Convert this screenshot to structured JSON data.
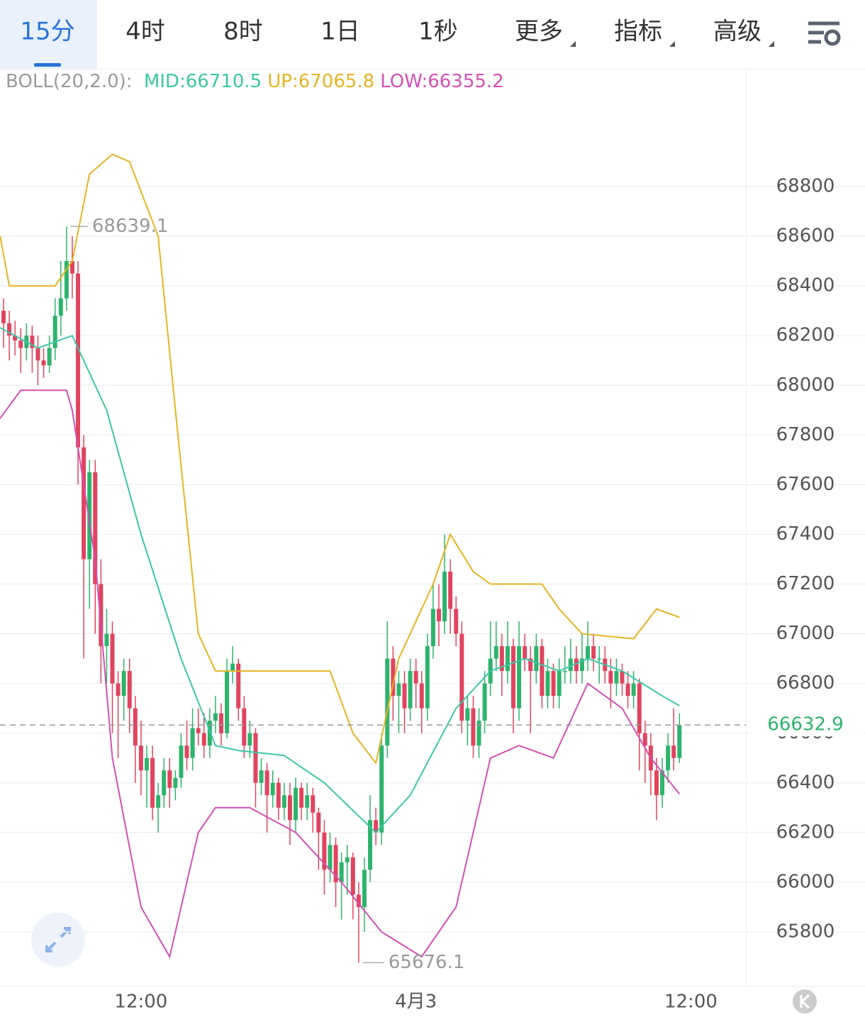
{
  "tabs": [
    "15分",
    "4时",
    "8时",
    "1日",
    "1秒",
    "更多",
    "指标",
    "高级"
  ],
  "chart_data": {
    "type": "candlestick",
    "indicator": "BOLL(20,2.0):",
    "up_color": "#2db36b",
    "down_color": "#e0445e",
    "xlim": [
      -0.619,
      129.6
    ],
    "xticks": [
      {
        "value": 24,
        "label": "12:00"
      },
      {
        "value": 72,
        "label": "4月3"
      },
      {
        "value": 120,
        "label": "12:00"
      }
    ],
    "ylim": [
      65583,
      69271
    ],
    "yticks": [
      65800,
      66000,
      66200,
      66400,
      66600,
      66800,
      67000,
      67200,
      67400,
      67600,
      67800,
      68000,
      68200,
      68400,
      68600,
      68800
    ],
    "grid": true,
    "candles": [
      [
        68300,
        68350,
        68150,
        68250
      ],
      [
        68250,
        68300,
        68100,
        68200
      ],
      [
        68200,
        68260,
        68120,
        68180
      ],
      [
        68180,
        68230,
        68050,
        68150
      ],
      [
        68150,
        68250,
        68100,
        68200
      ],
      [
        68200,
        68240,
        68050,
        68150
      ],
      [
        68150,
        68200,
        68000,
        68100
      ],
      [
        68100,
        68150,
        68030,
        68080
      ],
      [
        68080,
        68200,
        68050,
        68150
      ],
      [
        68150,
        68350,
        68100,
        68280
      ],
      [
        68280,
        68500,
        68200,
        68350
      ],
      [
        68350,
        68639.1,
        68300,
        68500
      ],
      [
        68500,
        68600,
        68350,
        68450
      ],
      [
        68450,
        68500,
        67600,
        67750
      ],
      [
        67750,
        67800,
        66900,
        67300
      ],
      [
        67300,
        67700,
        67100,
        67650
      ],
      [
        67650,
        67700,
        67000,
        67200
      ],
      [
        67200,
        67300,
        66800,
        66950
      ],
      [
        66950,
        67100,
        66800,
        67000
      ],
      [
        67000,
        67050,
        66600,
        66800
      ],
      [
        66800,
        66850,
        66500,
        66750
      ],
      [
        66750,
        66900,
        66650,
        66850
      ],
      [
        66850,
        66900,
        66600,
        66700
      ],
      [
        66700,
        66750,
        66400,
        66550
      ],
      [
        66550,
        66650,
        66350,
        66450
      ],
      [
        66450,
        66550,
        66300,
        66500
      ],
      [
        66500,
        66550,
        66250,
        66300
      ],
      [
        66300,
        66400,
        66200,
        66350
      ],
      [
        66350,
        66500,
        66300,
        66450
      ],
      [
        66450,
        66500,
        66300,
        66380
      ],
      [
        66380,
        66450,
        66330,
        66420
      ],
      [
        66420,
        66600,
        66380,
        66550
      ],
      [
        66550,
        66650,
        66450,
        66500
      ],
      [
        66500,
        66700,
        66450,
        66620
      ],
      [
        66620,
        66700,
        66550,
        66600
      ],
      [
        66600,
        66680,
        66500,
        66550
      ],
      [
        66550,
        66700,
        66500,
        66650
      ],
      [
        66650,
        66750,
        66600,
        66680
      ],
      [
        66680,
        66720,
        66550,
        66600
      ],
      [
        66600,
        66900,
        66580,
        66850
      ],
      [
        66850,
        66950,
        66800,
        66880
      ],
      [
        66880,
        66900,
        66650,
        66700
      ],
      [
        66700,
        66750,
        66500,
        66550
      ],
      [
        66550,
        66650,
        66500,
        66600
      ],
      [
        66600,
        66620,
        66300,
        66400
      ],
      [
        66400,
        66500,
        66350,
        66450
      ],
      [
        66450,
        66480,
        66200,
        66350
      ],
      [
        66350,
        66450,
        66300,
        66400
      ],
      [
        66400,
        66420,
        66250,
        66300
      ],
      [
        66300,
        66400,
        66250,
        66350
      ],
      [
        66350,
        66400,
        66150,
        66250
      ],
      [
        66250,
        66420,
        66200,
        66380
      ],
      [
        66380,
        66400,
        66250,
        66300
      ],
      [
        66300,
        66400,
        66250,
        66350
      ],
      [
        66350,
        66380,
        66200,
        66280
      ],
      [
        66280,
        66300,
        66050,
        66200
      ],
      [
        66200,
        66250,
        65950,
        66050
      ],
      [
        66050,
        66200,
        66000,
        66150
      ],
      [
        66150,
        66180,
        65900,
        66000
      ],
      [
        66000,
        66120,
        65850,
        66080
      ],
      [
        66080,
        66150,
        65950,
        66100
      ],
      [
        66100,
        66120,
        65850,
        65950
      ],
      [
        65950,
        66000,
        65676.1,
        65900
      ],
      [
        65900,
        66100,
        65800,
        66050
      ],
      [
        66050,
        66350,
        66000,
        66250
      ],
      [
        66250,
        66300,
        66150,
        66200
      ],
      [
        66200,
        66600,
        66150,
        66550
      ],
      [
        66550,
        67050,
        66500,
        66900
      ],
      [
        66900,
        66950,
        66650,
        66750
      ],
      [
        66750,
        66850,
        66600,
        66800
      ],
      [
        66800,
        66850,
        66600,
        66700
      ],
      [
        66700,
        66900,
        66650,
        66850
      ],
      [
        66850,
        66900,
        66700,
        66800
      ],
      [
        66800,
        66850,
        66600,
        66700
      ],
      [
        66700,
        67000,
        66650,
        66950
      ],
      [
        66950,
        67200,
        66900,
        67100
      ],
      [
        67100,
        67200,
        66950,
        67050
      ],
      [
        67050,
        67400,
        67000,
        67250
      ],
      [
        67250,
        67300,
        67000,
        67100
      ],
      [
        67100,
        67150,
        66950,
        67000
      ],
      [
        67000,
        67050,
        66600,
        66650
      ],
      [
        66650,
        66750,
        66550,
        66700
      ],
      [
        66700,
        66750,
        66500,
        66550
      ],
      [
        66550,
        66700,
        66500,
        66650
      ],
      [
        66650,
        66850,
        66600,
        66800
      ],
      [
        66800,
        67050,
        66750,
        66900
      ],
      [
        66900,
        67050,
        66850,
        66950
      ],
      [
        66950,
        67000,
        66750,
        66850
      ],
      [
        66850,
        67050,
        66800,
        66950
      ],
      [
        66950,
        66980,
        66600,
        66700
      ],
      [
        66700,
        67050,
        66650,
        66950
      ],
      [
        66950,
        67000,
        66850,
        66900
      ],
      [
        66900,
        66950,
        66600,
        66850
      ],
      [
        66850,
        67000,
        66800,
        66950
      ],
      [
        66950,
        66980,
        66700,
        66750
      ],
      [
        66750,
        66900,
        66700,
        66850
      ],
      [
        66850,
        66880,
        66700,
        66750
      ],
      [
        66750,
        66900,
        66700,
        66850
      ],
      [
        66850,
        66950,
        66800,
        66850
      ],
      [
        66850,
        66980,
        66800,
        66900
      ],
      [
        66900,
        66950,
        66800,
        66850
      ],
      [
        66850,
        67000,
        66800,
        66900
      ],
      [
        66900,
        67050,
        66850,
        66950
      ],
      [
        66950,
        67000,
        66850,
        66900
      ],
      [
        66900,
        66950,
        66800,
        66900
      ],
      [
        66900,
        66950,
        66800,
        66850
      ],
      [
        66850,
        66900,
        66700,
        66800
      ],
      [
        66800,
        66900,
        66750,
        66850
      ],
      [
        66850,
        66880,
        66750,
        66800
      ],
      [
        66800,
        66850,
        66700,
        66750
      ],
      [
        66750,
        66850,
        66700,
        66800
      ],
      [
        66800,
        66820,
        66450,
        66600
      ],
      [
        66600,
        66650,
        66400,
        66550
      ],
      [
        66550,
        66600,
        66350,
        66450
      ],
      [
        66450,
        66500,
        66250,
        66350
      ],
      [
        66350,
        66500,
        66300,
        66450
      ],
      [
        66450,
        66600,
        66400,
        66550
      ],
      [
        66550,
        66700,
        66450,
        66500
      ],
      [
        66500,
        66680,
        66480,
        66632.9
      ]
    ],
    "series": [
      {
        "name": "MID:66710.5",
        "color": "#3cc7a6",
        "x": [
          -0.6,
          6,
          12,
          18,
          24,
          31,
          37,
          41,
          49,
          56,
          65,
          71,
          79,
          85,
          91,
          97,
          102,
          108,
          115,
          118
        ],
        "values": [
          68232,
          68150,
          68200,
          67900,
          67400,
          66900,
          66550,
          66530,
          66510,
          66400,
          66200,
          66350,
          66700,
          66850,
          66900,
          66850,
          66900,
          66850,
          66750,
          66710.5
        ]
      },
      {
        "name": "UP:67065.8",
        "color": "#e6b422",
        "x": [
          -0.6,
          1,
          9,
          12,
          15,
          19,
          22,
          27,
          30,
          34,
          37,
          40,
          48,
          57,
          61,
          65,
          69,
          75,
          78,
          82,
          85,
          90,
          94,
          97,
          101,
          110,
          114,
          118
        ],
        "values": [
          68600,
          68400,
          68400,
          68500,
          68850,
          68930,
          68900,
          68600,
          67900,
          67000,
          66850,
          66850,
          66850,
          66850,
          66600,
          66480,
          66900,
          67200,
          67400,
          67250,
          67200,
          67200,
          67200,
          67100,
          67000,
          66980,
          67100,
          67065.8
        ]
      },
      {
        "name": "LOW:66355.2",
        "color": "#d54fb3",
        "x": [
          -0.6,
          3,
          11,
          12,
          16,
          19,
          24,
          29,
          34,
          37,
          43,
          47,
          51,
          59,
          66,
          73,
          79,
          85,
          90,
          96,
          98,
          102,
          108,
          113,
          118
        ],
        "values": [
          67867,
          67980,
          67980,
          67900,
          67300,
          66500,
          65900,
          65700,
          66200,
          66300,
          66300,
          66250,
          66200,
          66000,
          65800,
          65700,
          65900,
          66500,
          66550,
          66500,
          66600,
          66800,
          66700,
          66500,
          66355.2
        ]
      }
    ]
  }
}
